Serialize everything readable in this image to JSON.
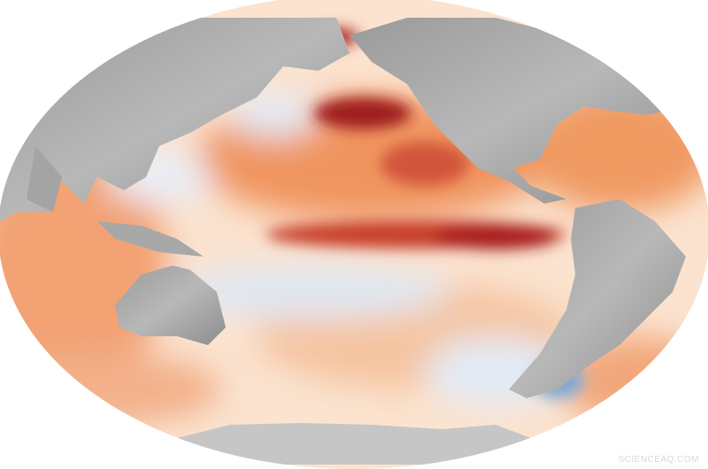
{
  "watermark": "SCIENCEAQ.COM"
}
